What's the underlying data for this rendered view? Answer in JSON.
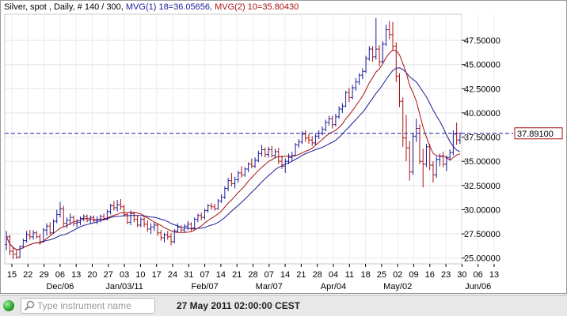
{
  "header": {
    "instrument": "Silver, spot , Daily, # 140 / 300,",
    "mvg1": "MVG(1) 18=36.05656,",
    "mvg2": "MVG(2) 10=35.80430"
  },
  "colors": {
    "up_bar": "#1a1a99",
    "down_bar": "#aa1111",
    "mvg1": "#1a1a99",
    "mvg2": "#aa1111",
    "price_line": "#1a1a99",
    "price_label": "#aa1111"
  },
  "chart_data": {
    "type": "ohlc",
    "title": "Silver, spot , Daily, # 140 / 300,",
    "ylim": [
      24.4,
      50.2
    ],
    "y_ticks": [
      "25.00000",
      "27.50000",
      "30.00000",
      "32.50000",
      "35.00000",
      "37.50000",
      "40.00000",
      "42.50000",
      "45.00000",
      "47.50000"
    ],
    "y_tick_values": [
      25,
      27.5,
      30,
      32.5,
      35,
      37.5,
      40,
      42.5,
      45,
      47.5
    ],
    "x_day_ticks": [
      "15",
      "22",
      "29",
      "06",
      "13",
      "20",
      "27",
      "03",
      "10",
      "17",
      "24",
      "31",
      "07",
      "14",
      "21",
      "28",
      "07",
      "14",
      "21",
      "28",
      "04",
      "11",
      "18",
      "25",
      "02",
      "09",
      "16",
      "23",
      "30",
      "06",
      "13"
    ],
    "x_month_labels": [
      {
        "label": "Dec/06",
        "at_tick": 3
      },
      {
        "label": "Jan/03/11",
        "at_tick": 7
      },
      {
        "label": "Feb/07",
        "at_tick": 12
      },
      {
        "label": "Mar/07",
        "at_tick": 16
      },
      {
        "label": "Apr/04",
        "at_tick": 20
      },
      {
        "label": "May/02",
        "at_tick": 24
      },
      {
        "label": "Jun/06",
        "at_tick": 29
      }
    ],
    "last_price": 37.891,
    "last_price_label": "37.89100",
    "grid": true,
    "series": [
      {
        "name": "MVG(1) 18",
        "type": "moving_average",
        "period": 18,
        "last": 36.05656
      },
      {
        "name": "MVG(2) 10",
        "type": "moving_average",
        "period": 10,
        "last": 35.8043
      }
    ],
    "ohlc": [
      [
        26.4,
        27.8,
        25.8,
        27.2
      ],
      [
        27.2,
        27.4,
        25.3,
        25.7
      ],
      [
        25.7,
        26.2,
        24.9,
        25.4
      ],
      [
        25.4,
        25.9,
        24.9,
        25.1
      ],
      [
        25.1,
        26.3,
        25.0,
        26.2
      ],
      [
        26.2,
        27.0,
        26.0,
        26.8
      ],
      [
        26.8,
        27.8,
        26.6,
        27.4
      ],
      [
        27.4,
        27.9,
        26.9,
        27.2
      ],
      [
        27.2,
        27.9,
        26.9,
        27.6
      ],
      [
        27.6,
        27.8,
        27.0,
        27.2
      ],
      [
        27.2,
        27.5,
        26.4,
        26.7
      ],
      [
        26.7,
        28.1,
        26.6,
        27.9
      ],
      [
        27.9,
        28.6,
        27.3,
        28.3
      ],
      [
        28.3,
        28.7,
        27.4,
        27.6
      ],
      [
        27.6,
        29.0,
        27.5,
        28.8
      ],
      [
        28.8,
        30.0,
        28.6,
        29.5
      ],
      [
        29.5,
        30.8,
        29.2,
        30.1
      ],
      [
        30.1,
        30.4,
        28.2,
        28.6
      ],
      [
        28.6,
        29.2,
        28.1,
        28.9
      ],
      [
        28.9,
        29.6,
        28.4,
        29.2
      ],
      [
        29.2,
        29.4,
        28.3,
        28.6
      ],
      [
        28.6,
        29.0,
        28.2,
        28.7
      ],
      [
        28.7,
        29.3,
        28.4,
        29.1
      ],
      [
        29.1,
        29.5,
        28.8,
        29.3
      ],
      [
        29.3,
        29.5,
        28.7,
        28.9
      ],
      [
        28.9,
        29.4,
        28.6,
        29.2
      ],
      [
        29.2,
        29.4,
        28.7,
        28.9
      ],
      [
        28.9,
        29.3,
        28.5,
        29.0
      ],
      [
        29.0,
        29.5,
        28.7,
        29.3
      ],
      [
        29.3,
        29.6,
        28.9,
        29.1
      ],
      [
        29.1,
        30.0,
        28.9,
        29.8
      ],
      [
        29.8,
        30.6,
        29.5,
        30.4
      ],
      [
        30.4,
        30.9,
        29.9,
        30.2
      ],
      [
        30.2,
        31.0,
        29.8,
        30.5
      ],
      [
        30.5,
        31.1,
        30.0,
        30.3
      ],
      [
        30.3,
        30.5,
        29.3,
        29.5
      ],
      [
        29.5,
        29.7,
        28.5,
        28.7
      ],
      [
        28.7,
        29.9,
        28.4,
        29.6
      ],
      [
        29.6,
        29.8,
        28.7,
        29.0
      ],
      [
        29.0,
        29.4,
        28.2,
        28.4
      ],
      [
        28.4,
        29.2,
        28.2,
        29.0
      ],
      [
        29.0,
        29.4,
        28.2,
        28.5
      ],
      [
        28.5,
        28.9,
        27.7,
        28.0
      ],
      [
        28.0,
        28.6,
        27.5,
        28.2
      ],
      [
        28.2,
        28.7,
        27.8,
        28.4
      ],
      [
        28.4,
        28.6,
        27.3,
        27.6
      ],
      [
        27.6,
        27.9,
        26.8,
        27.1
      ],
      [
        27.1,
        27.6,
        26.6,
        27.4
      ],
      [
        27.4,
        27.8,
        26.9,
        27.2
      ],
      [
        27.2,
        27.6,
        26.3,
        26.7
      ],
      [
        26.7,
        28.0,
        26.5,
        27.8
      ],
      [
        27.8,
        28.6,
        27.6,
        28.2
      ],
      [
        28.2,
        28.4,
        27.7,
        27.9
      ],
      [
        27.9,
        28.5,
        27.6,
        28.3
      ],
      [
        28.3,
        28.8,
        27.9,
        28.5
      ],
      [
        28.5,
        28.7,
        27.8,
        28.1
      ],
      [
        28.1,
        29.2,
        28.0,
        29.0
      ],
      [
        29.0,
        29.6,
        28.7,
        29.4
      ],
      [
        29.4,
        29.7,
        28.9,
        29.2
      ],
      [
        29.2,
        30.1,
        29.0,
        29.9
      ],
      [
        29.9,
        30.6,
        29.7,
        30.4
      ],
      [
        30.4,
        30.7,
        30.0,
        30.3
      ],
      [
        30.3,
        30.6,
        29.9,
        30.1
      ],
      [
        30.1,
        31.1,
        30.0,
        30.9
      ],
      [
        30.9,
        31.6,
        30.7,
        31.3
      ],
      [
        31.3,
        32.4,
        31.1,
        32.2
      ],
      [
        32.2,
        33.3,
        31.9,
        33.0
      ],
      [
        33.0,
        33.8,
        32.4,
        32.7
      ],
      [
        32.7,
        33.4,
        32.2,
        33.1
      ],
      [
        33.1,
        34.0,
        32.8,
        33.8
      ],
      [
        33.8,
        34.5,
        33.3,
        33.6
      ],
      [
        33.6,
        34.4,
        33.4,
        34.2
      ],
      [
        34.2,
        34.9,
        33.9,
        34.7
      ],
      [
        34.7,
        35.3,
        34.3,
        34.5
      ],
      [
        34.5,
        35.4,
        34.3,
        35.1
      ],
      [
        35.1,
        36.1,
        34.9,
        35.8
      ],
      [
        35.8,
        36.7,
        35.5,
        36.2
      ],
      [
        36.2,
        36.4,
        35.4,
        35.7
      ],
      [
        35.7,
        36.5,
        35.4,
        36.2
      ],
      [
        36.2,
        36.6,
        35.4,
        35.6
      ],
      [
        35.6,
        36.3,
        35.3,
        36.0
      ],
      [
        36.0,
        36.4,
        34.7,
        35.0
      ],
      [
        35.0,
        35.6,
        34.2,
        34.5
      ],
      [
        34.5,
        35.3,
        33.8,
        35.0
      ],
      [
        35.0,
        35.8,
        34.7,
        35.4
      ],
      [
        35.4,
        36.0,
        35.0,
        35.6
      ],
      [
        35.6,
        36.9,
        35.5,
        36.7
      ],
      [
        36.7,
        37.3,
        36.4,
        37.0
      ],
      [
        37.0,
        38.1,
        36.8,
        37.8
      ],
      [
        37.8,
        38.2,
        37.0,
        37.4
      ],
      [
        37.4,
        37.8,
        36.8,
        37.2
      ],
      [
        37.2,
        37.6,
        36.6,
        36.9
      ],
      [
        36.9,
        37.8,
        36.7,
        37.6
      ],
      [
        37.6,
        38.2,
        37.3,
        37.9
      ],
      [
        37.9,
        38.6,
        37.7,
        38.3
      ],
      [
        38.3,
        39.3,
        38.1,
        39.0
      ],
      [
        39.0,
        39.7,
        38.7,
        39.4
      ],
      [
        39.4,
        39.7,
        38.4,
        38.8
      ],
      [
        38.8,
        39.9,
        38.6,
        39.6
      ],
      [
        39.6,
        40.7,
        39.4,
        40.4
      ],
      [
        40.4,
        41.0,
        40.0,
        40.7
      ],
      [
        40.7,
        42.3,
        40.6,
        42.1
      ],
      [
        42.1,
        42.6,
        41.1,
        41.6
      ],
      [
        41.6,
        42.9,
        41.4,
        42.6
      ],
      [
        42.6,
        43.6,
        42.3,
        43.2
      ],
      [
        43.2,
        44.1,
        42.9,
        43.9
      ],
      [
        43.9,
        44.6,
        43.5,
        44.3
      ],
      [
        44.3,
        45.9,
        44.1,
        45.6
      ],
      [
        45.6,
        46.9,
        45.4,
        46.6
      ],
      [
        46.6,
        46.9,
        45.3,
        45.8
      ],
      [
        45.8,
        49.8,
        45.5,
        46.6
      ],
      [
        46.6,
        47.0,
        44.8,
        45.3
      ],
      [
        45.3,
        47.4,
        45.1,
        47.1
      ],
      [
        47.1,
        49.1,
        46.9,
        48.6
      ],
      [
        48.6,
        49.5,
        47.6,
        48.1
      ],
      [
        48.1,
        49.4,
        46.4,
        46.9
      ],
      [
        46.9,
        47.3,
        43.2,
        43.8
      ],
      [
        43.8,
        44.1,
        40.6,
        41.2
      ],
      [
        41.2,
        41.6,
        36.5,
        37.4
      ],
      [
        37.4,
        39.8,
        35.0,
        36.4
      ],
      [
        36.4,
        37.1,
        33.0,
        33.9
      ],
      [
        33.9,
        37.9,
        33.6,
        37.6
      ],
      [
        37.6,
        39.4,
        37.0,
        38.4
      ],
      [
        38.4,
        38.8,
        34.7,
        35.0
      ],
      [
        35.0,
        36.3,
        32.3,
        34.7
      ],
      [
        34.7,
        36.8,
        34.4,
        36.5
      ],
      [
        36.5,
        36.8,
        34.1,
        34.6
      ],
      [
        34.6,
        35.0,
        32.8,
        33.6
      ],
      [
        33.6,
        35.5,
        33.3,
        35.2
      ],
      [
        35.2,
        35.8,
        34.5,
        35.5
      ],
      [
        35.5,
        36.0,
        34.4,
        34.7
      ],
      [
        34.7,
        35.6,
        34.0,
        35.4
      ],
      [
        35.4,
        36.2,
        35.1,
        35.9
      ],
      [
        35.9,
        38.2,
        35.6,
        37.8
      ],
      [
        37.8,
        39.0,
        36.7,
        37.2
      ],
      [
        37.2,
        38.0,
        36.8,
        37.89
      ]
    ]
  },
  "toolbar": {
    "search_placeholder": "Type instrument name",
    "datetime": "27 May 2011 02:00:00 CEST"
  }
}
